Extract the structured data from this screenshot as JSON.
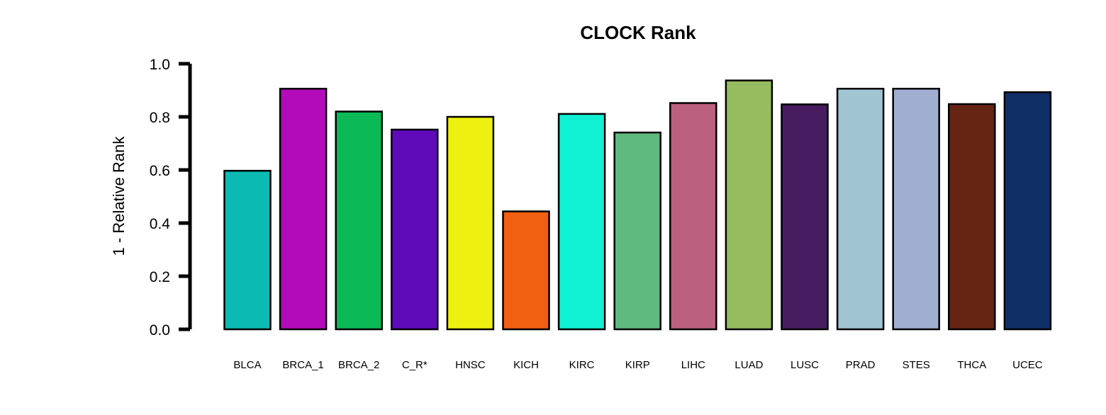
{
  "chart_data": {
    "type": "bar",
    "title": "CLOCK Rank",
    "xlabel": "",
    "ylabel": "1 - Relative Rank",
    "ylim": [
      0,
      1
    ],
    "yticks": [
      "0.0",
      "0.2",
      "0.4",
      "0.6",
      "0.8",
      "1.0"
    ],
    "grid": false,
    "categories": [
      "BLCA",
      "BRCA_1",
      "BRCA_2",
      "C_R*",
      "HNSC",
      "KICH",
      "KIRC",
      "KIRP",
      "LIHC",
      "LUAD",
      "LUSC",
      "PRAD",
      "STES",
      "THCA",
      "UCEC"
    ],
    "values": [
      0.597,
      0.906,
      0.82,
      0.752,
      0.8,
      0.444,
      0.811,
      0.741,
      0.852,
      0.937,
      0.847,
      0.906,
      0.906,
      0.848,
      0.893
    ],
    "colors": [
      "#0BBBB3",
      "#B30BBA",
      "#0BBA57",
      "#5F0BBA",
      "#EEF00F",
      "#F06010",
      "#10F0D2",
      "#5FBA7F",
      "#BC6080",
      "#97BC60",
      "#481C60",
      "#A0C4D2",
      "#A0AED2",
      "#662412",
      "#0F2F66"
    ]
  }
}
